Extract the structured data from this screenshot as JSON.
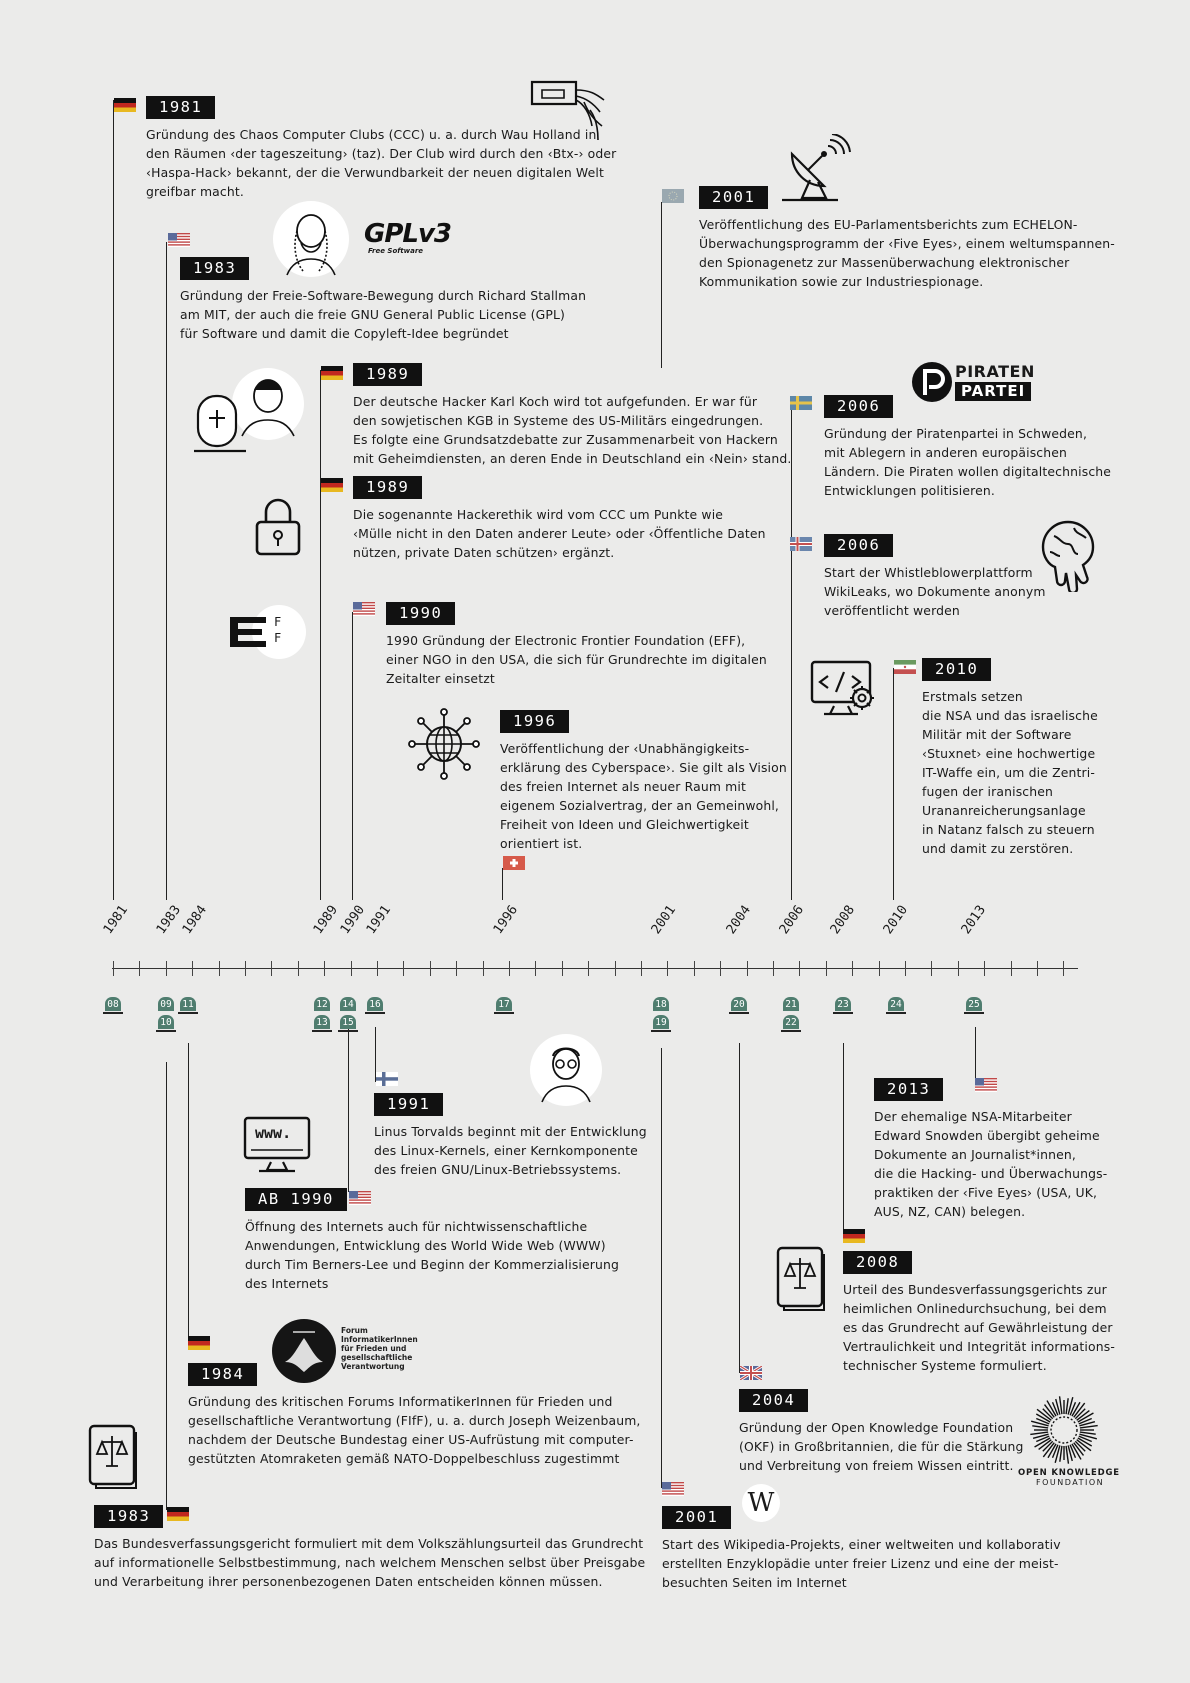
{
  "events": {
    "e1981": {
      "year": "1981",
      "text": "Gründung des Chaos Computer Clubs (CCC) u. a. durch Wau Holland in\nden Räumen ‹der tageszeitung› (taz). Der Club wird durch den ‹Btx-› oder\n‹Haspa-Hack› bekannt, der die Verwundbarkeit der neuen digitalen Welt\ngreifbar macht."
    },
    "e1983a": {
      "year": "1983",
      "text": "Gründung der Freie-Software-Bewegung durch Richard Stallman\nam MIT, der auch die freie GNU General Public License (GPL)\nfür Software und damit die Copyleft-Idee begründet"
    },
    "e1989a": {
      "year": "1989",
      "text": "Der deutsche Hacker Karl Koch wird tot aufgefunden. Er war für\nden sowjetischen KGB in Systeme des US-Militärs eingedrungen.\nEs folgte eine Grundsatzdebatte zur Zusammenarbeit von Hackern\nmit Geheimdiensten, an deren Ende in Deutschland ein  ‹Nein› stand."
    },
    "e1989b": {
      "year": "1989",
      "text": "Die sogenannte Hackerethik wird vom CCC um Punkte wie\n‹Mülle nicht in den Daten anderer Leute› oder ‹Öffentliche Daten\nnützen, private Daten schützen› ergänzt."
    },
    "e1990": {
      "year": "1990",
      "text": "1990 Gründung der Electronic Frontier Foundation (EFF),\neiner NGO in den USA, die sich für Grundrechte im digitalen\nZeitalter einsetzt"
    },
    "e1996": {
      "year": "1996",
      "text": "Veröffentlichung der ‹Unabhängigkeits-\nerklärung des Cyberspace›. Sie gilt als Vision\ndes freien Internet als neuer Raum mit\neigenem Sozialvertrag, der an Gemeinwohl,\nFreiheit von Ideen und Gleichwertigkeit\norientiert ist."
    },
    "e2001a": {
      "year": "2001",
      "text": "Veröffentlichung des EU-Parlamentsberichts zum ECHELON-\nÜberwachungsprogramm der ‹Five Eyes›, einem weltumspannen-\nden Spionagenetz zur Massenüberwachung elektronischer\nKommunikation sowie zur Industriespionage."
    },
    "e2006a": {
      "year": "2006",
      "text": "Gründung der Piratenpartei in Schweden,\nmit Ablegern in anderen europäischen\nLändern. Die Piraten wollen digitaltechnische\nEntwicklungen politisieren."
    },
    "e2006b": {
      "year": "2006",
      "text": "Start der Whistleblowerplattform\nWikiLeaks, wo Dokumente anonym\nveröffentlicht werden"
    },
    "e2010": {
      "year": "2010",
      "text": "Erstmals setzen\ndie NSA und das israelische\nMilitär mit der Software\n‹Stuxnet› eine hochwertige\nIT-Waffe ein, um die Zentri-\nfugen der iranischen\nUrananreicherungsanlage\nin Natanz falsch zu steuern\nund damit zu zerstören."
    },
    "e1991": {
      "year": "1991",
      "text": "Linus Torvalds beginnt mit der Entwicklung\ndes Linux-Kernels, einer Kernkomponente\ndes freien GNU/Linux-Betriebssystems."
    },
    "eab1990": {
      "year": "AB 1990",
      "text": "Öffnung des Internets auch für nichtwissenschaftliche\nAnwendungen, Entwicklung des World Wide Web (WWW)\ndurch Tim Berners-Lee und Beginn der Kommerzialisierung\ndes Internets"
    },
    "e1984": {
      "year": "1984",
      "text": "Gründung des kritischen Forums InformatikerInnen für Frieden und\ngesellschaftliche Verantwortung (FIfF), u. a. durch Joseph Weizenbaum,\nnachdem der Deutsche Bundestag einer US-Aufrüstung mit computer-\ngestützten Atomraketen gemäß NATO-Doppelbeschluss zugestimmt"
    },
    "e1983b": {
      "year": "1983",
      "text": "Das Bundesverfassungsgericht formuliert mit dem Volkszählungsurteil das Grundrecht\nauf informationelle Selbstbestimmung, nach welchem Menschen selbst über Preisgabe\nund Verarbeitung ihrer personenbezogenen Daten entscheiden können müssen."
    },
    "e2013": {
      "year": "2013",
      "text": "Der ehemalige NSA-Mitarbeiter\nEdward Snowden übergibt geheime\nDokumente an Journalist*innen,\ndie die Hacking- und Überwachungs-\npraktiken der ‹Five Eyes› (USA, UK,\nAUS, NZ, CAN) belegen."
    },
    "e2008": {
      "year": "2008",
      "text": "Urteil des Bundesverfassungsgerichts zur\nheimlichen Onlinedurchsuchung, bei dem\nes das Grundrecht auf Gewährleistung der\nVertraulichkeit und Integrität informations-\ntechnischer Systeme formuliert."
    },
    "e2004": {
      "year": "2004",
      "text": "Gründung der Open Knowledge Foundation\n(OKF) in Großbritannien, die für die Stärkung\nund Verbreitung von freiem Wissen eintritt."
    },
    "e2001b": {
      "year": "2001",
      "text": "Start des Wikipedia-Projekts, einer weltweiten und kollaborativ\nerstellten Enzyklopädie unter freier Lizenz und eine der meist-\nbesuchten Seiten im Internet"
    }
  },
  "axis_years": [
    "1981",
    "1983",
    "1984",
    "1989",
    "1990",
    "1991",
    "1996",
    "2001",
    "2004",
    "2006",
    "2008",
    "2010",
    "2013"
  ],
  "markers": {
    "m08": "08",
    "m09": "09",
    "m10": "10",
    "m11": "11",
    "m12": "12",
    "m13": "13",
    "m14": "14",
    "m15": "15",
    "m16": "16",
    "m17": "17",
    "m18": "18",
    "m19": "19",
    "m20": "20",
    "m21": "21",
    "m22": "22",
    "m23": "23",
    "m24": "24",
    "m25": "25"
  },
  "logos": {
    "gpl": "GPLv3",
    "gpl_sub": "Free Software",
    "piraten1": "PIRATEN",
    "piraten2": "PARTEI",
    "www": "www.",
    "fiff": "Forum\nInformatikerInnen\nfür Frieden und\ngesellschaftliche\nVerantwortung",
    "okf1": "OPEN KNOWLEDGE",
    "okf2": "FOUNDATION",
    "wiki": "W",
    "eff": "F\nF"
  },
  "colors": {
    "accent": "#111111",
    "marker": "#4f7d6f",
    "background": "#ebebea"
  }
}
